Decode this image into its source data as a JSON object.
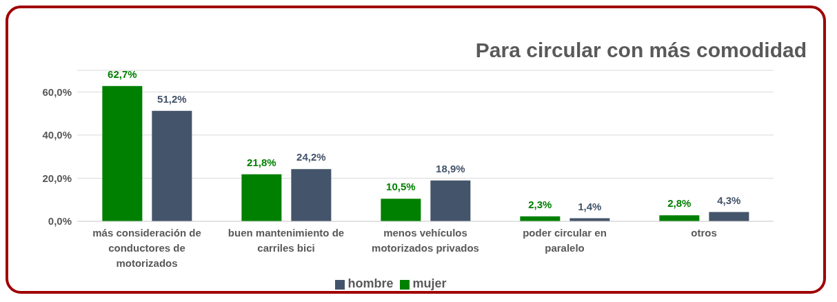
{
  "chart_data": {
    "type": "bar",
    "title": "Para circular con más comodidad",
    "categories": [
      "más consideración de conductores de motorizados",
      "buen mantenimiento de carriles bici",
      "menos vehículos motorizados privados",
      "poder circular en paralelo",
      "otros"
    ],
    "series": [
      {
        "name": "mujer",
        "color": "#008000",
        "values": [
          62.7,
          21.8,
          10.5,
          2.3,
          2.8
        ],
        "value_labels": [
          "62,7%",
          "21,8%",
          "10,5%",
          "2,3%",
          "2,8%"
        ]
      },
      {
        "name": "hombre",
        "color": "#44546a",
        "values": [
          51.2,
          24.2,
          18.9,
          1.4,
          4.3
        ],
        "value_labels": [
          "51,2%",
          "24,2%",
          "18,9%",
          "1,4%",
          "4,3%"
        ]
      }
    ],
    "ylim": [
      0,
      70
    ],
    "yticks": [
      {
        "value": 0,
        "label": "0,0%"
      },
      {
        "value": 20,
        "label": "20,0%"
      },
      {
        "value": 40,
        "label": "40,0%"
      },
      {
        "value": 60,
        "label": "60,0%"
      }
    ],
    "grid": "y",
    "legend": "bottom"
  }
}
